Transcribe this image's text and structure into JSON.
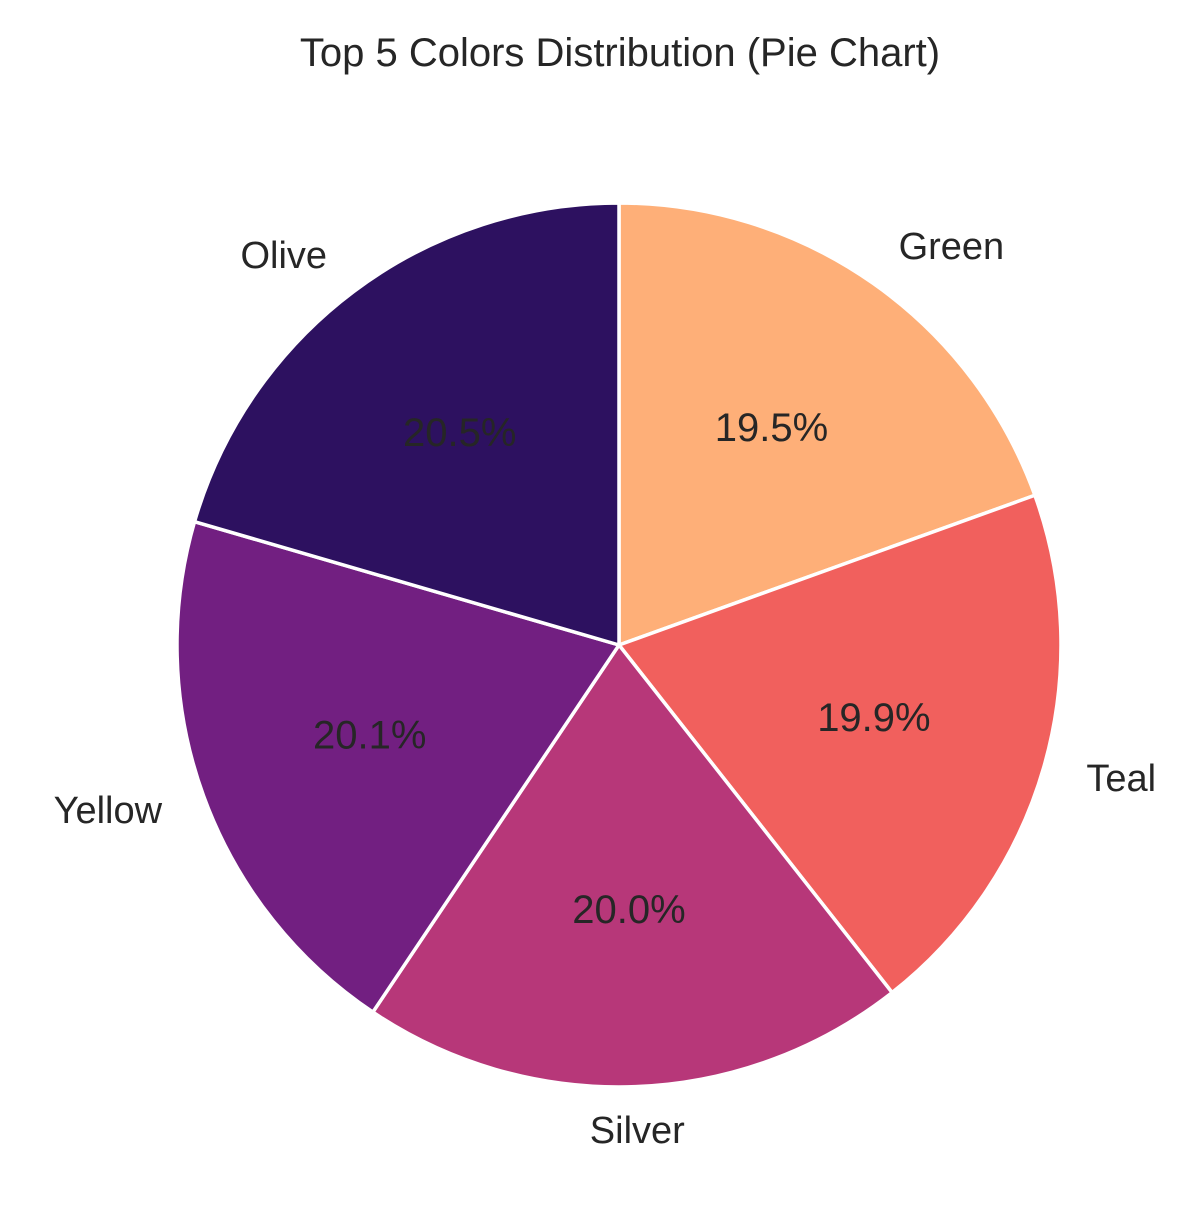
{
  "chart_data": {
    "type": "pie",
    "title": "Top 5 Colors Distribution (Pie Chart)",
    "categories": [
      "Green",
      "Teal",
      "Silver",
      "Yellow",
      "Olive"
    ],
    "values": [
      19.5,
      19.9,
      20.0,
      20.1,
      20.5
    ],
    "value_labels": [
      "19.5%",
      "19.9%",
      "20.0%",
      "20.1%",
      "20.5%"
    ],
    "colors": [
      "#feaf78",
      "#f1605d",
      "#b73779",
      "#721f81",
      "#2d1160"
    ],
    "start_angle_deg": 90,
    "direction": "clockwise",
    "legend": "none"
  }
}
